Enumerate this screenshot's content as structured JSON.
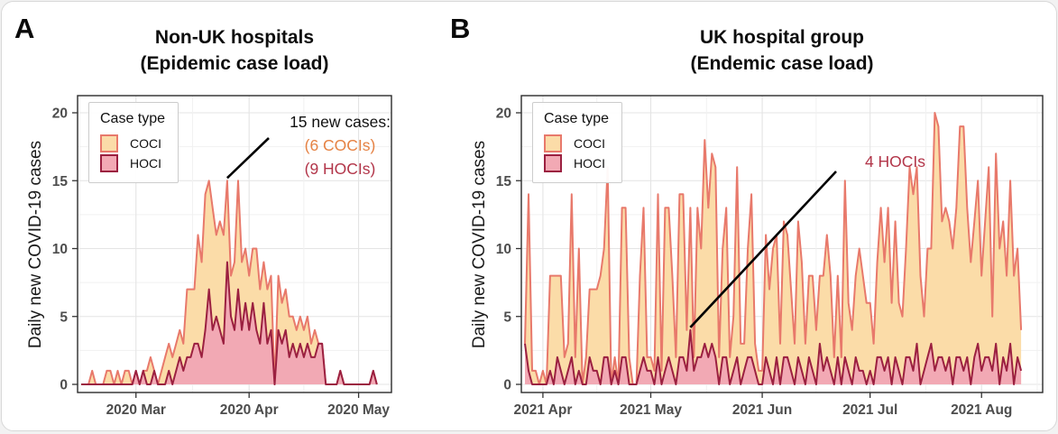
{
  "legend": {
    "title": "Case type",
    "items": [
      {
        "label": "COCI"
      },
      {
        "label": "HOCI"
      }
    ]
  },
  "colors": {
    "coci_fill": "#FBDCA8",
    "coci_line": "#E8796B",
    "hoci_fill": "#F2A9B4",
    "hoci_line": "#9B2040",
    "annotation_coci_text": "#E58244",
    "annotation_hoci_text": "#B23549",
    "grid_major": "#E4E4E4",
    "grid_minor": "#F1F1F1",
    "panel_border": "#2B2B2B",
    "axis_text": "#4D4D4D",
    "annotation_line": "#000000"
  },
  "chart_data": [
    {
      "type": "area",
      "panel_label": "A",
      "title_line1": "Non-UK hospitals",
      "title_line2": "(Epidemic case load)",
      "ylabel": "Daily new COVID-19 cases",
      "ylim": [
        0,
        20
      ],
      "yticks": [
        0,
        5,
        10,
        15,
        20
      ],
      "grid": true,
      "legend_position": "top-left-inside",
      "x_axis": {
        "span_days": 86,
        "tick_offsets": [
          16,
          47,
          77
        ],
        "tick_labels": [
          "2020 Mar",
          "2020 Apr",
          "2020 May"
        ],
        "start_date": "2020-02-14"
      },
      "series_start_offset": 1,
      "stacking": "HOCI bottom, COCI stacked on top; top edge = total daily cases",
      "series": [
        {
          "name": "HOCI",
          "values": [
            0,
            0,
            0,
            0,
            0,
            0,
            0,
            0,
            0,
            0,
            0,
            0,
            0,
            0,
            0,
            1,
            0,
            1,
            0,
            0,
            1,
            0,
            0,
            0,
            1,
            0,
            1,
            2,
            1,
            2,
            2,
            3,
            3,
            2,
            4,
            7,
            4,
            5,
            4,
            3,
            9,
            5,
            4,
            7,
            4,
            6,
            4,
            6,
            4,
            3,
            6,
            3,
            4,
            0,
            4,
            3,
            4,
            2,
            3,
            2,
            3,
            2,
            3,
            2,
            2,
            3,
            3,
            0,
            0,
            0,
            0,
            1,
            0,
            0,
            0,
            0,
            0,
            0,
            0,
            0,
            1,
            0
          ]
        },
        {
          "name": "COCI",
          "values": [
            0,
            0,
            0,
            1,
            0,
            0,
            0,
            1,
            1,
            0,
            1,
            0,
            1,
            1,
            0,
            0,
            0,
            0,
            1,
            2,
            0,
            0,
            1,
            2,
            2,
            2,
            2,
            2,
            2,
            5,
            5,
            4,
            8,
            7,
            10,
            8,
            9,
            6,
            8,
            8,
            6,
            3,
            5,
            8,
            5,
            4,
            4,
            4,
            6,
            4,
            3,
            4,
            4,
            0,
            4,
            3,
            3,
            3,
            2,
            2,
            2,
            2,
            2,
            1,
            2,
            0,
            0,
            0,
            0,
            0,
            0,
            0,
            0,
            0,
            0,
            0,
            0,
            0,
            0,
            0,
            0,
            0
          ]
        }
      ],
      "annotation": {
        "line1": "15 new cases:",
        "line2": "(6 COCIs)",
        "line3": "(9 HOCIs)",
        "points_at": {
          "day_offset": 41,
          "value": 15,
          "total_cases": 15,
          "coci": 6,
          "hoci": 9
        }
      }
    },
    {
      "type": "area",
      "panel_label": "B",
      "title_line1": "UK hospital group",
      "title_line2": "(Endemic case load)",
      "ylabel": "Daily new COVID-19 cases",
      "ylim": [
        0,
        20
      ],
      "yticks": [
        0,
        5,
        10,
        15,
        20
      ],
      "grid": true,
      "legend_position": "top-left-inside",
      "x_axis": {
        "span_days": 145,
        "tick_offsets": [
          6,
          36,
          67,
          97,
          128
        ],
        "tick_labels": [
          "2021 Apr",
          "2021 May",
          "2021 Jun",
          "2021 Jul",
          "2021 Aug"
        ],
        "start_date": "2021-03-26"
      },
      "series_start_offset": 1,
      "stacking": "HOCI bottom, COCI stacked on top; top edge = total daily cases",
      "series": [
        {
          "name": "HOCI",
          "values": [
            3,
            1,
            0,
            0,
            0,
            0,
            0,
            1,
            0,
            2,
            1,
            0,
            1,
            2,
            0,
            1,
            0,
            0,
            2,
            1,
            1,
            0,
            2,
            2,
            0,
            1,
            0,
            2,
            2,
            0,
            0,
            0,
            1,
            2,
            1,
            1,
            0,
            2,
            0,
            1,
            2,
            1,
            0,
            2,
            2,
            1,
            4,
            1,
            2,
            2,
            3,
            2,
            3,
            2,
            0,
            2,
            2,
            0,
            1,
            2,
            0,
            1,
            2,
            2,
            1,
            0,
            0,
            2,
            1,
            0,
            2,
            0,
            2,
            2,
            1,
            0,
            2,
            1,
            0,
            2,
            1,
            0,
            3,
            1,
            2,
            1,
            0,
            2,
            0,
            2,
            1,
            0,
            2,
            1,
            1,
            0,
            1,
            0,
            2,
            2,
            1,
            2,
            0,
            2,
            1,
            0,
            2,
            2,
            1,
            3,
            0,
            1,
            2,
            3,
            1,
            2,
            2,
            1,
            2,
            0,
            2,
            2,
            1,
            2,
            0,
            2,
            3,
            1,
            2,
            2,
            1,
            3,
            0,
            2,
            1,
            3,
            0,
            2,
            1
          ]
        },
        {
          "name": "COCI",
          "values": [
            0,
            13,
            1,
            1,
            0,
            1,
            0,
            7,
            8,
            6,
            7,
            2,
            2,
            12,
            2,
            9,
            0,
            2,
            5,
            6,
            6,
            8,
            8,
            14,
            0,
            1,
            0,
            11,
            11,
            2,
            0,
            0,
            7,
            11,
            1,
            1,
            1,
            12,
            1,
            12,
            11,
            7,
            2,
            12,
            12,
            3,
            9,
            1,
            11,
            8,
            15,
            11,
            14,
            14,
            2,
            8,
            11,
            2,
            4,
            14,
            3,
            2,
            8,
            12,
            2,
            1,
            1,
            9,
            6,
            10,
            9,
            3,
            10,
            9,
            6,
            3,
            10,
            8,
            3,
            6,
            7,
            4,
            5,
            7,
            9,
            7,
            2,
            6,
            2,
            13,
            5,
            4,
            6,
            9,
            7,
            6,
            5,
            3,
            7,
            11,
            8,
            11,
            6,
            10,
            5,
            5,
            8,
            14,
            13,
            13,
            8,
            4,
            8,
            7,
            19,
            17,
            10,
            12,
            10,
            10,
            11,
            17,
            18,
            11,
            9,
            10,
            12,
            7,
            10,
            14,
            4,
            14,
            10,
            10,
            7,
            12,
            8,
            8,
            3
          ]
        }
      ],
      "annotation": {
        "label": "4 HOCIs",
        "points_at": {
          "day_offset": 47,
          "value": 4,
          "hoci": 4
        }
      }
    }
  ]
}
